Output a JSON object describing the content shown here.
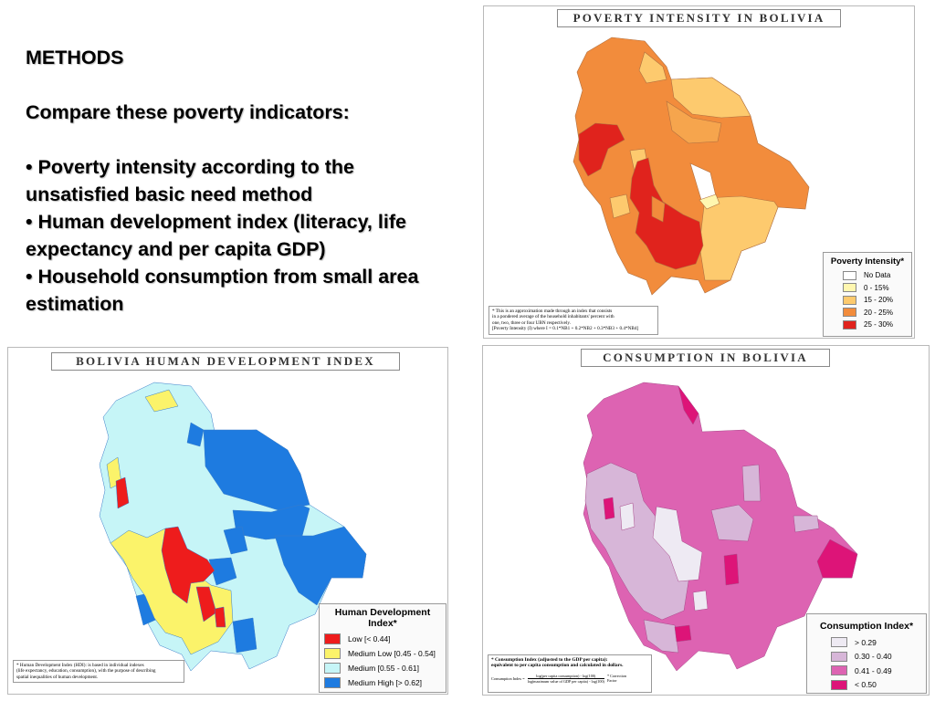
{
  "methods": {
    "heading": "METHODS",
    "intro": "Compare these poverty indicators:",
    "bullets": [
      "Poverty intensity according to the unsatisfied basic need method",
      "Human development index (literacy, life expectancy and per capita GDP)",
      "Household consumption from small area estimation"
    ]
  },
  "poverty_map": {
    "title": "POVERTY INTENSITY IN BOLIVIA",
    "legend_title": "Poverty Intensity*",
    "legend": [
      {
        "label": "No Data",
        "color": "#ffffff"
      },
      {
        "label": "0 - 15%",
        "color": "#fff7b0"
      },
      {
        "label": "15 - 20%",
        "color": "#fdca6e"
      },
      {
        "label": "20 - 25%",
        "color": "#f28c3c"
      },
      {
        "label": "25 - 30%",
        "color": "#e0231d"
      }
    ],
    "note_lines": [
      "* This is an approximation made through an index that consists",
      "in a pondered average of the household inhabitants' percent with",
      "one, two, three or four UBN respectively.",
      "[Poverty Intensity (I) where I = 0.1*NB1 + 0.2*NB2 + 0.3*NB3 + 0.4*NB4]"
    ]
  },
  "hdi_map": {
    "title": "BOLIVIA HUMAN DEVELOPMENT INDEX",
    "legend_title": "Human Development Index*",
    "legend": [
      {
        "label": "Low [< 0.44]",
        "color": "#ee1c1c"
      },
      {
        "label": "Medium Low [0.45 - 0.54]",
        "color": "#fbf36a"
      },
      {
        "label": "Medium [0.55 - 0.61]",
        "color": "#c6f5f7"
      },
      {
        "label": "Medium High [> 0.62]",
        "color": "#1e7be0"
      }
    ],
    "note_lines": [
      "* Human Development Index (HDI): is based in individual indexes",
      "(life expectancy, education, consumption), with the purpose of describing",
      "spatial inequalities of human development."
    ]
  },
  "consumption_map": {
    "title": "CONSUMPTION IN BOLIVIA",
    "legend_title": "Consumption Index*",
    "legend": [
      {
        "label": "> 0.29",
        "color": "#eeeaf3"
      },
      {
        "label": "0.30 - 0.40",
        "color": "#d7b6d8"
      },
      {
        "label": "0.41 - 0.49",
        "color": "#dd63b2"
      },
      {
        "label": "< 0.50",
        "color": "#dd1478"
      }
    ],
    "note_lines": [
      "* Consumption Index (adjusted to the GDP per capita):",
      "equivalent to per capita consumption and calculated in dollars."
    ],
    "formula_lines": [
      "Consumption Index =",
      "log(per capita consumption) - log(100)",
      "log(maximum value of GDP per capita) - log(100)",
      "* Correction Factor"
    ]
  }
}
